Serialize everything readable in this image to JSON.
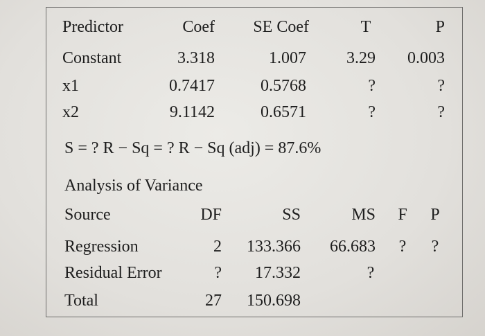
{
  "coef_table": {
    "headers": [
      "Predictor",
      "Coef",
      "SE Coef",
      "T",
      "P"
    ],
    "rows": [
      [
        "Constant",
        "3.318",
        "1.007",
        "3.29",
        "0.003"
      ],
      [
        "x1",
        "0.7417",
        "0.5768",
        "?",
        "?"
      ],
      [
        "x2",
        "9.1142",
        "0.6571",
        "?",
        "?"
      ]
    ]
  },
  "summary_line": "S = ? R − Sq = ? R − Sq (adj) = 87.6%",
  "anova": {
    "title": "Analysis of Variance",
    "headers": [
      "Source",
      "DF",
      "SS",
      "MS",
      "F",
      "P"
    ],
    "rows": [
      [
        "Regression",
        "2",
        "133.366",
        "66.683",
        "?",
        "?"
      ],
      [
        "Residual Error",
        "?",
        "17.332",
        "?",
        "",
        ""
      ],
      [
        "Total",
        "27",
        "150.698",
        "",
        "",
        ""
      ]
    ]
  }
}
